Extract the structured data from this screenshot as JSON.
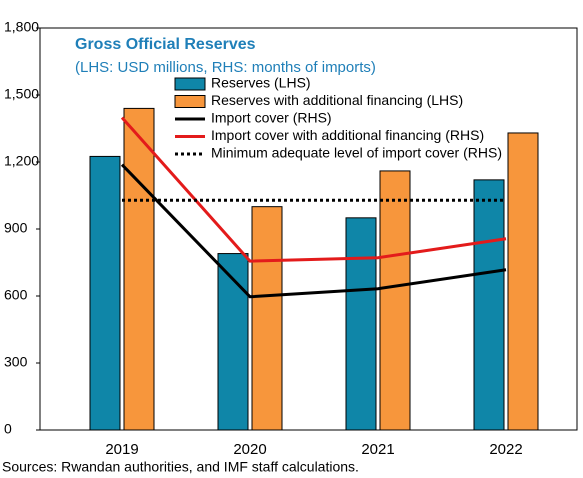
{
  "chart_data": {
    "type": "bar-line",
    "title": "Gross Official Reserves",
    "subtitle": "(LHS: USD millions, RHS: months of imports)",
    "source": "Sources: Rwandan authorities, and IMF staff calculations.",
    "categories": [
      "2019",
      "2020",
      "2021",
      "2022"
    ],
    "ylim": [
      0,
      1800
    ],
    "yticks": [
      0,
      300,
      600,
      900,
      {
        "value": 1200,
        "label": "1,200"
      },
      {
        "value": 1500,
        "label": "1,500"
      },
      {
        "value": 1800,
        "label": "1,800"
      }
    ],
    "y2lim": [
      0,
      7
    ],
    "series": [
      {
        "name": "Reserves (LHS)",
        "kind": "bar",
        "color": "#0f86a8",
        "values": [
          1225,
          790,
          950,
          1120
        ]
      },
      {
        "name": "Reserves with additional financing (LHS)",
        "kind": "bar",
        "color": "#f7963c",
        "values": [
          1440,
          1000,
          1160,
          1330
        ]
      },
      {
        "name": "Import cover (RHS)",
        "kind": "line",
        "axis": "y2",
        "color": "#000000",
        "line_style": "solid",
        "values": [
          4.62,
          2.32,
          2.46,
          2.79
        ]
      },
      {
        "name": "Import cover with additional financing (RHS)",
        "kind": "line",
        "axis": "y2",
        "color": "#e31b1b",
        "line_style": "solid",
        "values": [
          5.44,
          2.94,
          3.0,
          3.33
        ]
      },
      {
        "name": "Minimum adequate level of import cover (RHS)",
        "kind": "line",
        "axis": "y2",
        "color": "#000000",
        "line_style": "dotted",
        "values": [
          4,
          4,
          4,
          4
        ]
      }
    ]
  }
}
